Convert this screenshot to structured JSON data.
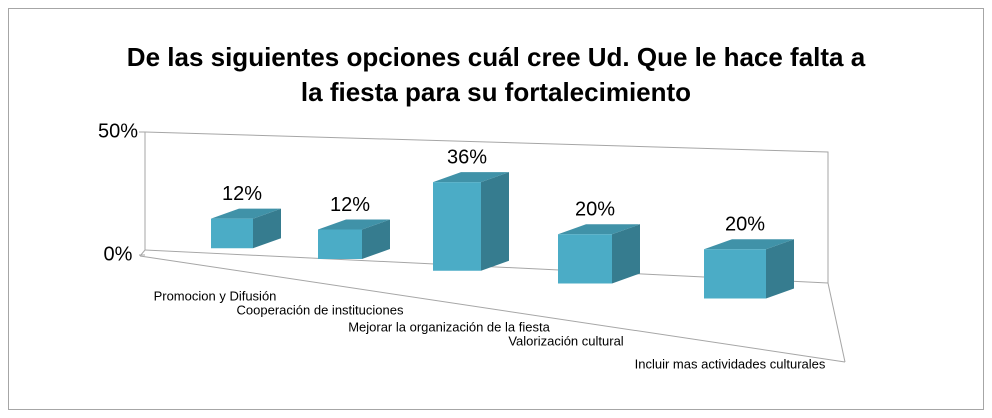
{
  "chart_data": {
    "type": "bar3d",
    "title": "De las siguientes opciones cuál cree Ud. Que le hace falta a\nla fiesta para su fortalecimiento",
    "categories": [
      "Promocion y Difusión",
      "Cooperación de instituciones",
      "Mejorar la organización de la fiesta",
      "Valorización cultural",
      "Incluir mas actividades culturales"
    ],
    "values": [
      12,
      12,
      36,
      20,
      20
    ],
    "value_labels": [
      "12%",
      "12%",
      "36%",
      "20%",
      "20%"
    ],
    "color": "#4bacc6",
    "ylim": [
      0,
      50
    ],
    "yticks": [
      {
        "value": 0,
        "label": "0%"
      },
      {
        "value": 50,
        "label": "50%"
      }
    ]
  }
}
